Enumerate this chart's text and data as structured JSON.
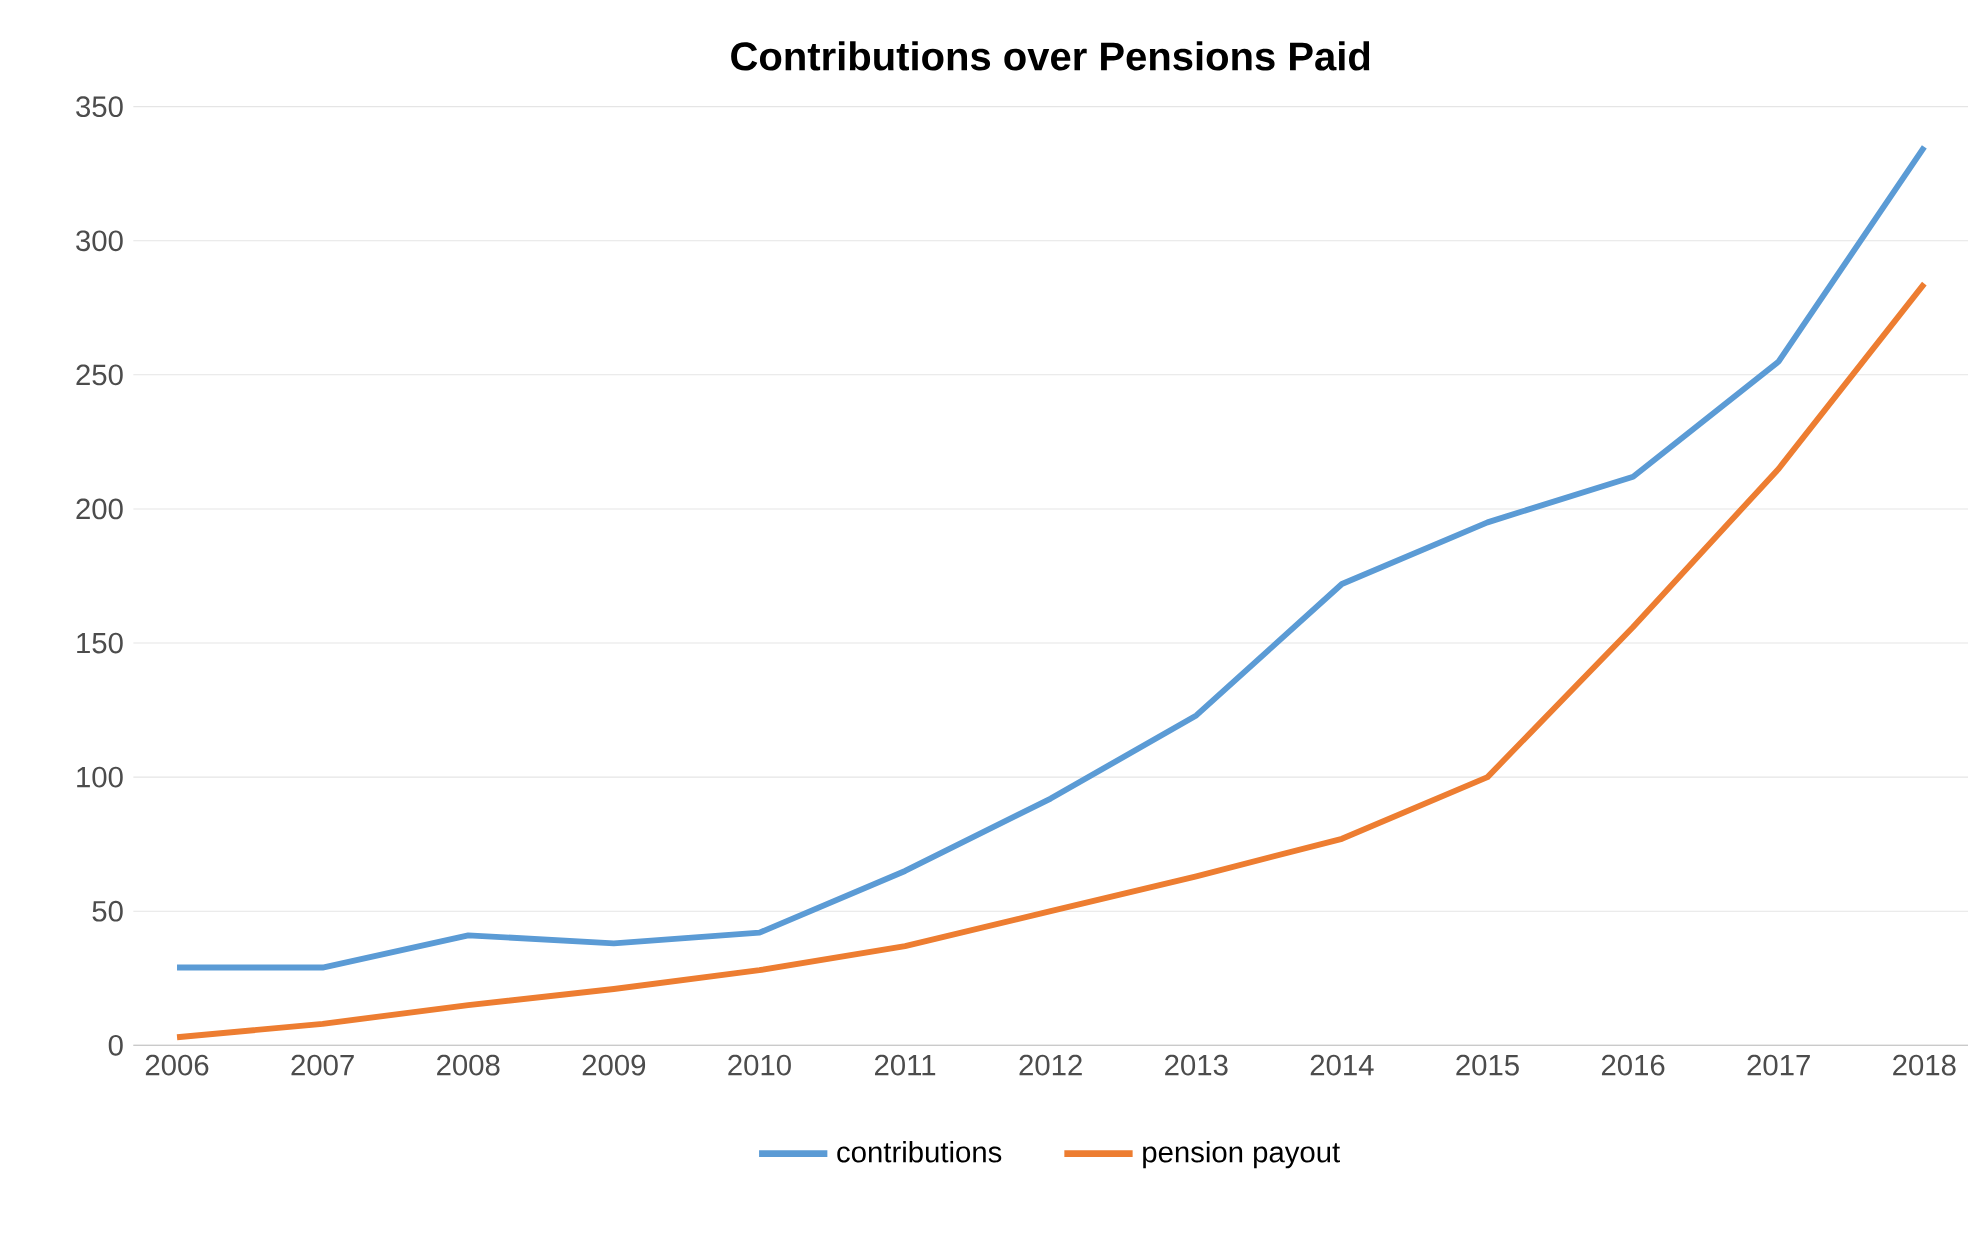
{
  "chart_data": {
    "type": "line",
    "title": "Contributions over Pensions Paid",
    "categories": [
      "2006",
      "2007",
      "2008",
      "2009",
      "2010",
      "2011",
      "2012",
      "2013",
      "2014",
      "2015",
      "2016",
      "2017",
      "2018"
    ],
    "series": [
      {
        "name": "contributions",
        "color": "#5b9bd5",
        "values": [
          29,
          29,
          41,
          38,
          42,
          65,
          92,
          123,
          172,
          195,
          212,
          255,
          335
        ]
      },
      {
        "name": "pension payout",
        "color": "#ed7d31",
        "values": [
          3,
          8,
          15,
          21,
          28,
          37,
          50,
          63,
          77,
          100,
          156,
          215,
          284
        ]
      }
    ],
    "ylim": [
      0,
      350
    ],
    "yticks": [
      0,
      50,
      100,
      150,
      200,
      250,
      300,
      350
    ],
    "grid": "y",
    "legend": "bottom",
    "marker": "none",
    "line_style": "solid"
  }
}
